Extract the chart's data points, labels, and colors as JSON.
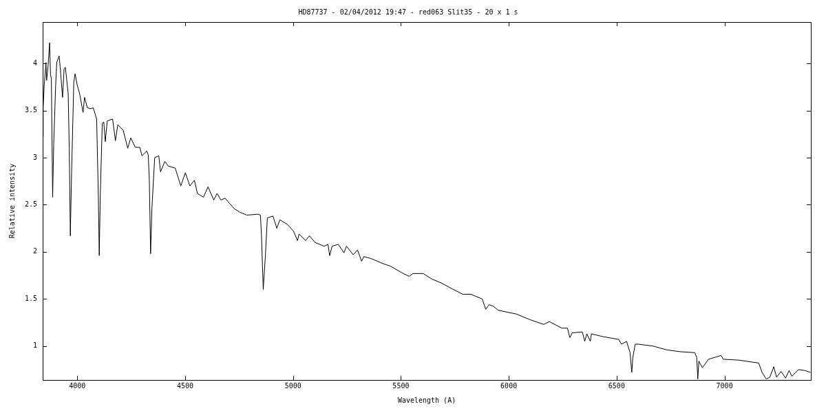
{
  "chart_data": {
    "type": "line",
    "title": "HD87737 - 02/04/2012 19:47 - red063 Slit35 - 20 x 1 s",
    "xlabel": "Wavelength (A)",
    "ylabel": "Relative intensity",
    "xlim": [
      3840,
      7400
    ],
    "ylim": [
      0.64,
      4.44
    ],
    "xticks": [
      4000,
      4500,
      5000,
      5500,
      6000,
      6500,
      7000
    ],
    "yticks": [
      1,
      1.5,
      2,
      2.5,
      3,
      3.5,
      4
    ],
    "grid": false,
    "legend": false,
    "marker": "none",
    "line_style": "solid",
    "series": [
      {
        "color": "#000000",
        "x": [
          3840,
          3842,
          3847,
          3855,
          3858,
          3865,
          3872,
          3876,
          3880,
          3886,
          3891,
          3900,
          3905,
          3916,
          3921,
          3932,
          3939,
          3945,
          3958,
          3963,
          3968,
          3974,
          3984,
          3990,
          4000,
          4011,
          4027,
          4034,
          4047,
          4063,
          4074,
          4090,
          4098,
          4102,
          4107,
          4116,
          4123,
          4130,
          4139,
          4164,
          4177,
          4188,
          4213,
          4234,
          4248,
          4269,
          4290,
          4300,
          4322,
          4329,
          4334,
          4340,
          4346,
          4359,
          4378,
          4386,
          4406,
          4422,
          4454,
          4480,
          4501,
          4522,
          4543,
          4557,
          4585,
          4606,
          4633,
          4648,
          4666,
          4685,
          4727,
          4754,
          4786,
          4838,
          4849,
          4854,
          4862,
          4872,
          4881,
          4907,
          4925,
          4939,
          4975,
          5002,
          5021,
          5028,
          5058,
          5076,
          5102,
          5144,
          5162,
          5170,
          5181,
          5210,
          5236,
          5248,
          5279,
          5299,
          5318,
          5328,
          5360,
          5381,
          5423,
          5450,
          5503,
          5538,
          5556,
          5603,
          5645,
          5687,
          5735,
          5787,
          5824,
          5877,
          5893,
          5909,
          5930,
          5951,
          6035,
          6098,
          6162,
          6188,
          6246,
          6272,
          6283,
          6294,
          6341,
          6352,
          6362,
          6378,
          6383,
          6436,
          6510,
          6522,
          6546,
          6562,
          6570,
          6575,
          6586,
          6600,
          6668,
          6731,
          6794,
          6862,
          6871,
          6876,
          6881,
          6897,
          6926,
          6984,
          6994,
          7068,
          7158,
          7174,
          7193,
          7210,
          7228,
          7241,
          7262,
          7283,
          7299,
          7312,
          7342,
          7373,
          7398
        ],
        "values": [
          3.22,
          3.53,
          3.77,
          4.01,
          3.82,
          3.98,
          4.22,
          3.88,
          3.84,
          2.58,
          3.15,
          3.77,
          4.01,
          4.08,
          3.96,
          3.64,
          3.94,
          3.96,
          3.68,
          3.1,
          2.17,
          2.86,
          3.8,
          3.89,
          3.77,
          3.68,
          3.48,
          3.64,
          3.53,
          3.52,
          3.53,
          3.41,
          2.57,
          1.96,
          2.62,
          3.36,
          3.38,
          3.17,
          3.39,
          3.41,
          3.18,
          3.35,
          3.29,
          3.1,
          3.21,
          3.11,
          3.11,
          3.02,
          3.07,
          3.03,
          2.77,
          1.98,
          2.46,
          3.0,
          3.02,
          2.85,
          2.96,
          2.91,
          2.89,
          2.7,
          2.84,
          2.7,
          2.76,
          2.62,
          2.58,
          2.69,
          2.55,
          2.62,
          2.55,
          2.57,
          2.46,
          2.42,
          2.39,
          2.4,
          2.39,
          2.17,
          1.6,
          1.96,
          2.36,
          2.38,
          2.25,
          2.34,
          2.29,
          2.22,
          2.12,
          2.19,
          2.12,
          2.17,
          2.1,
          2.06,
          2.08,
          1.96,
          2.06,
          2.08,
          1.99,
          2.06,
          1.97,
          2.02,
          1.9,
          1.95,
          1.93,
          1.91,
          1.87,
          1.85,
          1.78,
          1.74,
          1.77,
          1.77,
          1.71,
          1.67,
          1.61,
          1.55,
          1.55,
          1.5,
          1.39,
          1.44,
          1.42,
          1.38,
          1.34,
          1.28,
          1.23,
          1.26,
          1.19,
          1.19,
          1.09,
          1.14,
          1.15,
          1.05,
          1.13,
          1.05,
          1.13,
          1.1,
          1.07,
          1.02,
          1.05,
          0.93,
          0.72,
          0.88,
          1.02,
          1.02,
          1.0,
          0.96,
          0.94,
          0.93,
          0.88,
          0.65,
          0.84,
          0.77,
          0.86,
          0.9,
          0.86,
          0.85,
          0.82,
          0.72,
          0.65,
          0.67,
          0.78,
          0.67,
          0.73,
          0.66,
          0.74,
          0.68,
          0.75,
          0.74,
          0.72
        ]
      }
    ]
  }
}
